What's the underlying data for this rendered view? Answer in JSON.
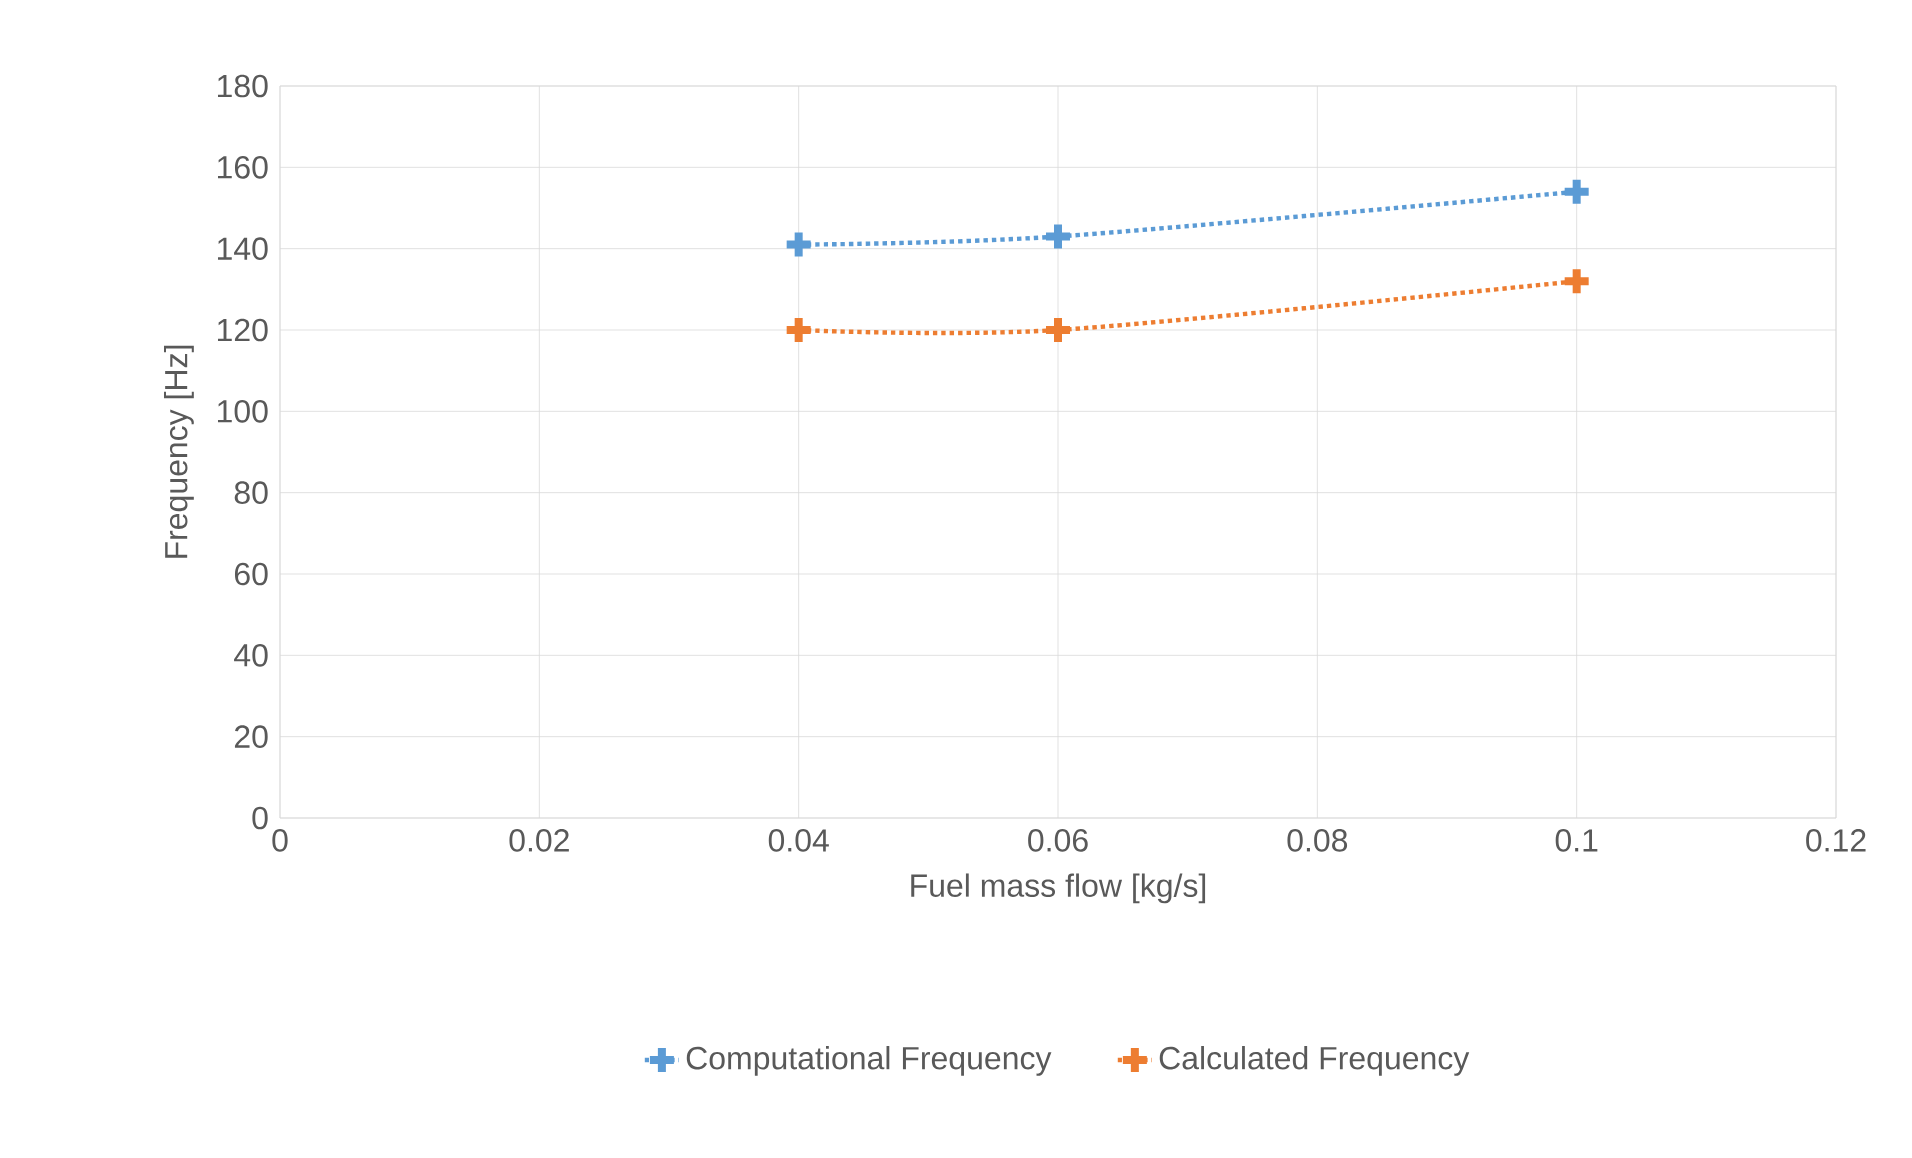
{
  "chart_data": {
    "type": "line",
    "xlabel": "Fuel mass flow [kg/s]",
    "ylabel": "Frequency [Hz]",
    "xlim": [
      0,
      0.12
    ],
    "xticks": [
      0,
      0.02,
      0.04,
      0.06,
      0.08,
      0.1,
      0.12
    ],
    "ylim": [
      0,
      180
    ],
    "yticks": [
      0,
      20,
      40,
      60,
      80,
      100,
      120,
      140,
      160,
      180
    ],
    "x": [
      0.04,
      0.06,
      0.1
    ],
    "series": [
      {
        "name": "Computational Frequency",
        "color": "#5b9bd5",
        "values": [
          141,
          143,
          154
        ]
      },
      {
        "name": "Calculated Frequency",
        "color": "#ed7d31",
        "values": [
          120,
          120,
          132
        ]
      }
    ],
    "grid": true,
    "legend": "bottom",
    "marker": "cross",
    "line_style": "dotted"
  }
}
